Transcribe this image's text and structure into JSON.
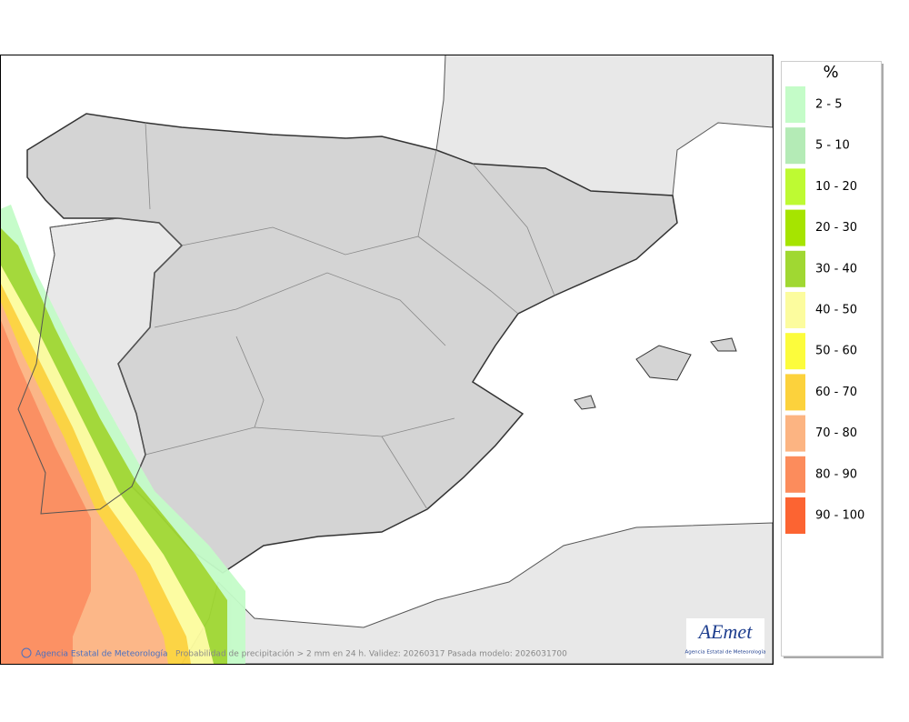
{
  "legend": {
    "title": "%",
    "items": [
      {
        "label": "2 - 5",
        "color": "#c4fcc8"
      },
      {
        "label": "5 - 10",
        "color": "#b4ebb6"
      },
      {
        "label": "10 - 20",
        "color": "#befa32"
      },
      {
        "label": "20 - 30",
        "color": "#a6e400"
      },
      {
        "label": "30 - 40",
        "color": "#a0d832"
      },
      {
        "label": "40 - 50",
        "color": "#fcfc9e"
      },
      {
        "label": "50 - 60",
        "color": "#fcfc3c"
      },
      {
        "label": "60 - 70",
        "color": "#fcd23c"
      },
      {
        "label": "70 - 80",
        "color": "#fcb482"
      },
      {
        "label": "80 - 90",
        "color": "#fc8c5c"
      },
      {
        "label": "90 - 100",
        "color": "#fc6432"
      }
    ]
  },
  "footer": {
    "credit": "Agencia Estatal de Meteorología",
    "caption": "Probabilidad de precipitación > 2 mm en 24 h. Validez: 20260317 Pasada modelo: 2026031700"
  },
  "logo": {
    "name": "AEmet",
    "subtitle": "Agencia Estatal de Meteorología"
  }
}
